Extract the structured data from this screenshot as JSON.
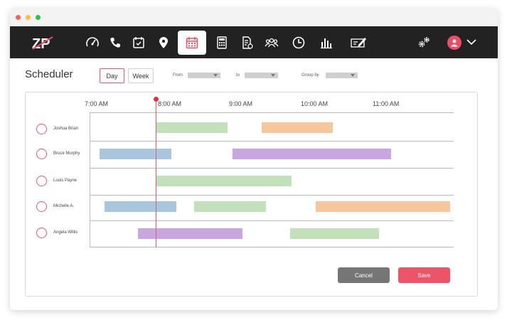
{
  "window": {
    "dots": [
      "#ff5f57",
      "#febc2e",
      "#28c840"
    ]
  },
  "navbar": {
    "logo_text": "ZP",
    "accent": "#ea4f63",
    "icons": [
      "speedometer-icon",
      "phone-icon",
      "calendar-check-icon",
      "map-pin-icon",
      "calendar-icon",
      "calculator-icon",
      "document-icon",
      "users-icon",
      "clock-icon",
      "bar-chart-icon",
      "pen-card-icon",
      "gears-icon"
    ],
    "active_icon": "calendar-icon"
  },
  "page": {
    "title": "Scheduler",
    "view_day": "Day",
    "view_week": "Week",
    "active_view": "Day",
    "from_label": "From",
    "to_label": "to",
    "group_by_label": "Group by"
  },
  "timeline": {
    "time_labels": [
      "7:00 AM",
      "8:00 AM",
      "9:00 AM",
      "10:00 AM",
      "11:00 AM"
    ],
    "now_marker_color": "#e0303f",
    "rows": [
      {
        "name": "Joshua Brian"
      },
      {
        "name": "Bruce Murphy"
      },
      {
        "name": "Louis Payne"
      },
      {
        "name": "Michelle A."
      },
      {
        "name": "Angela Willis"
      }
    ],
    "colors": {
      "green": "#c2e0ba",
      "orange": "#f5c79b",
      "blue": "#a8c6dd",
      "purple": "#c8a6df"
    }
  },
  "actions": {
    "cancel_label": "Cancel",
    "save_label": "Save",
    "cancel_color": "#767676",
    "save_color": "#ee5468"
  }
}
